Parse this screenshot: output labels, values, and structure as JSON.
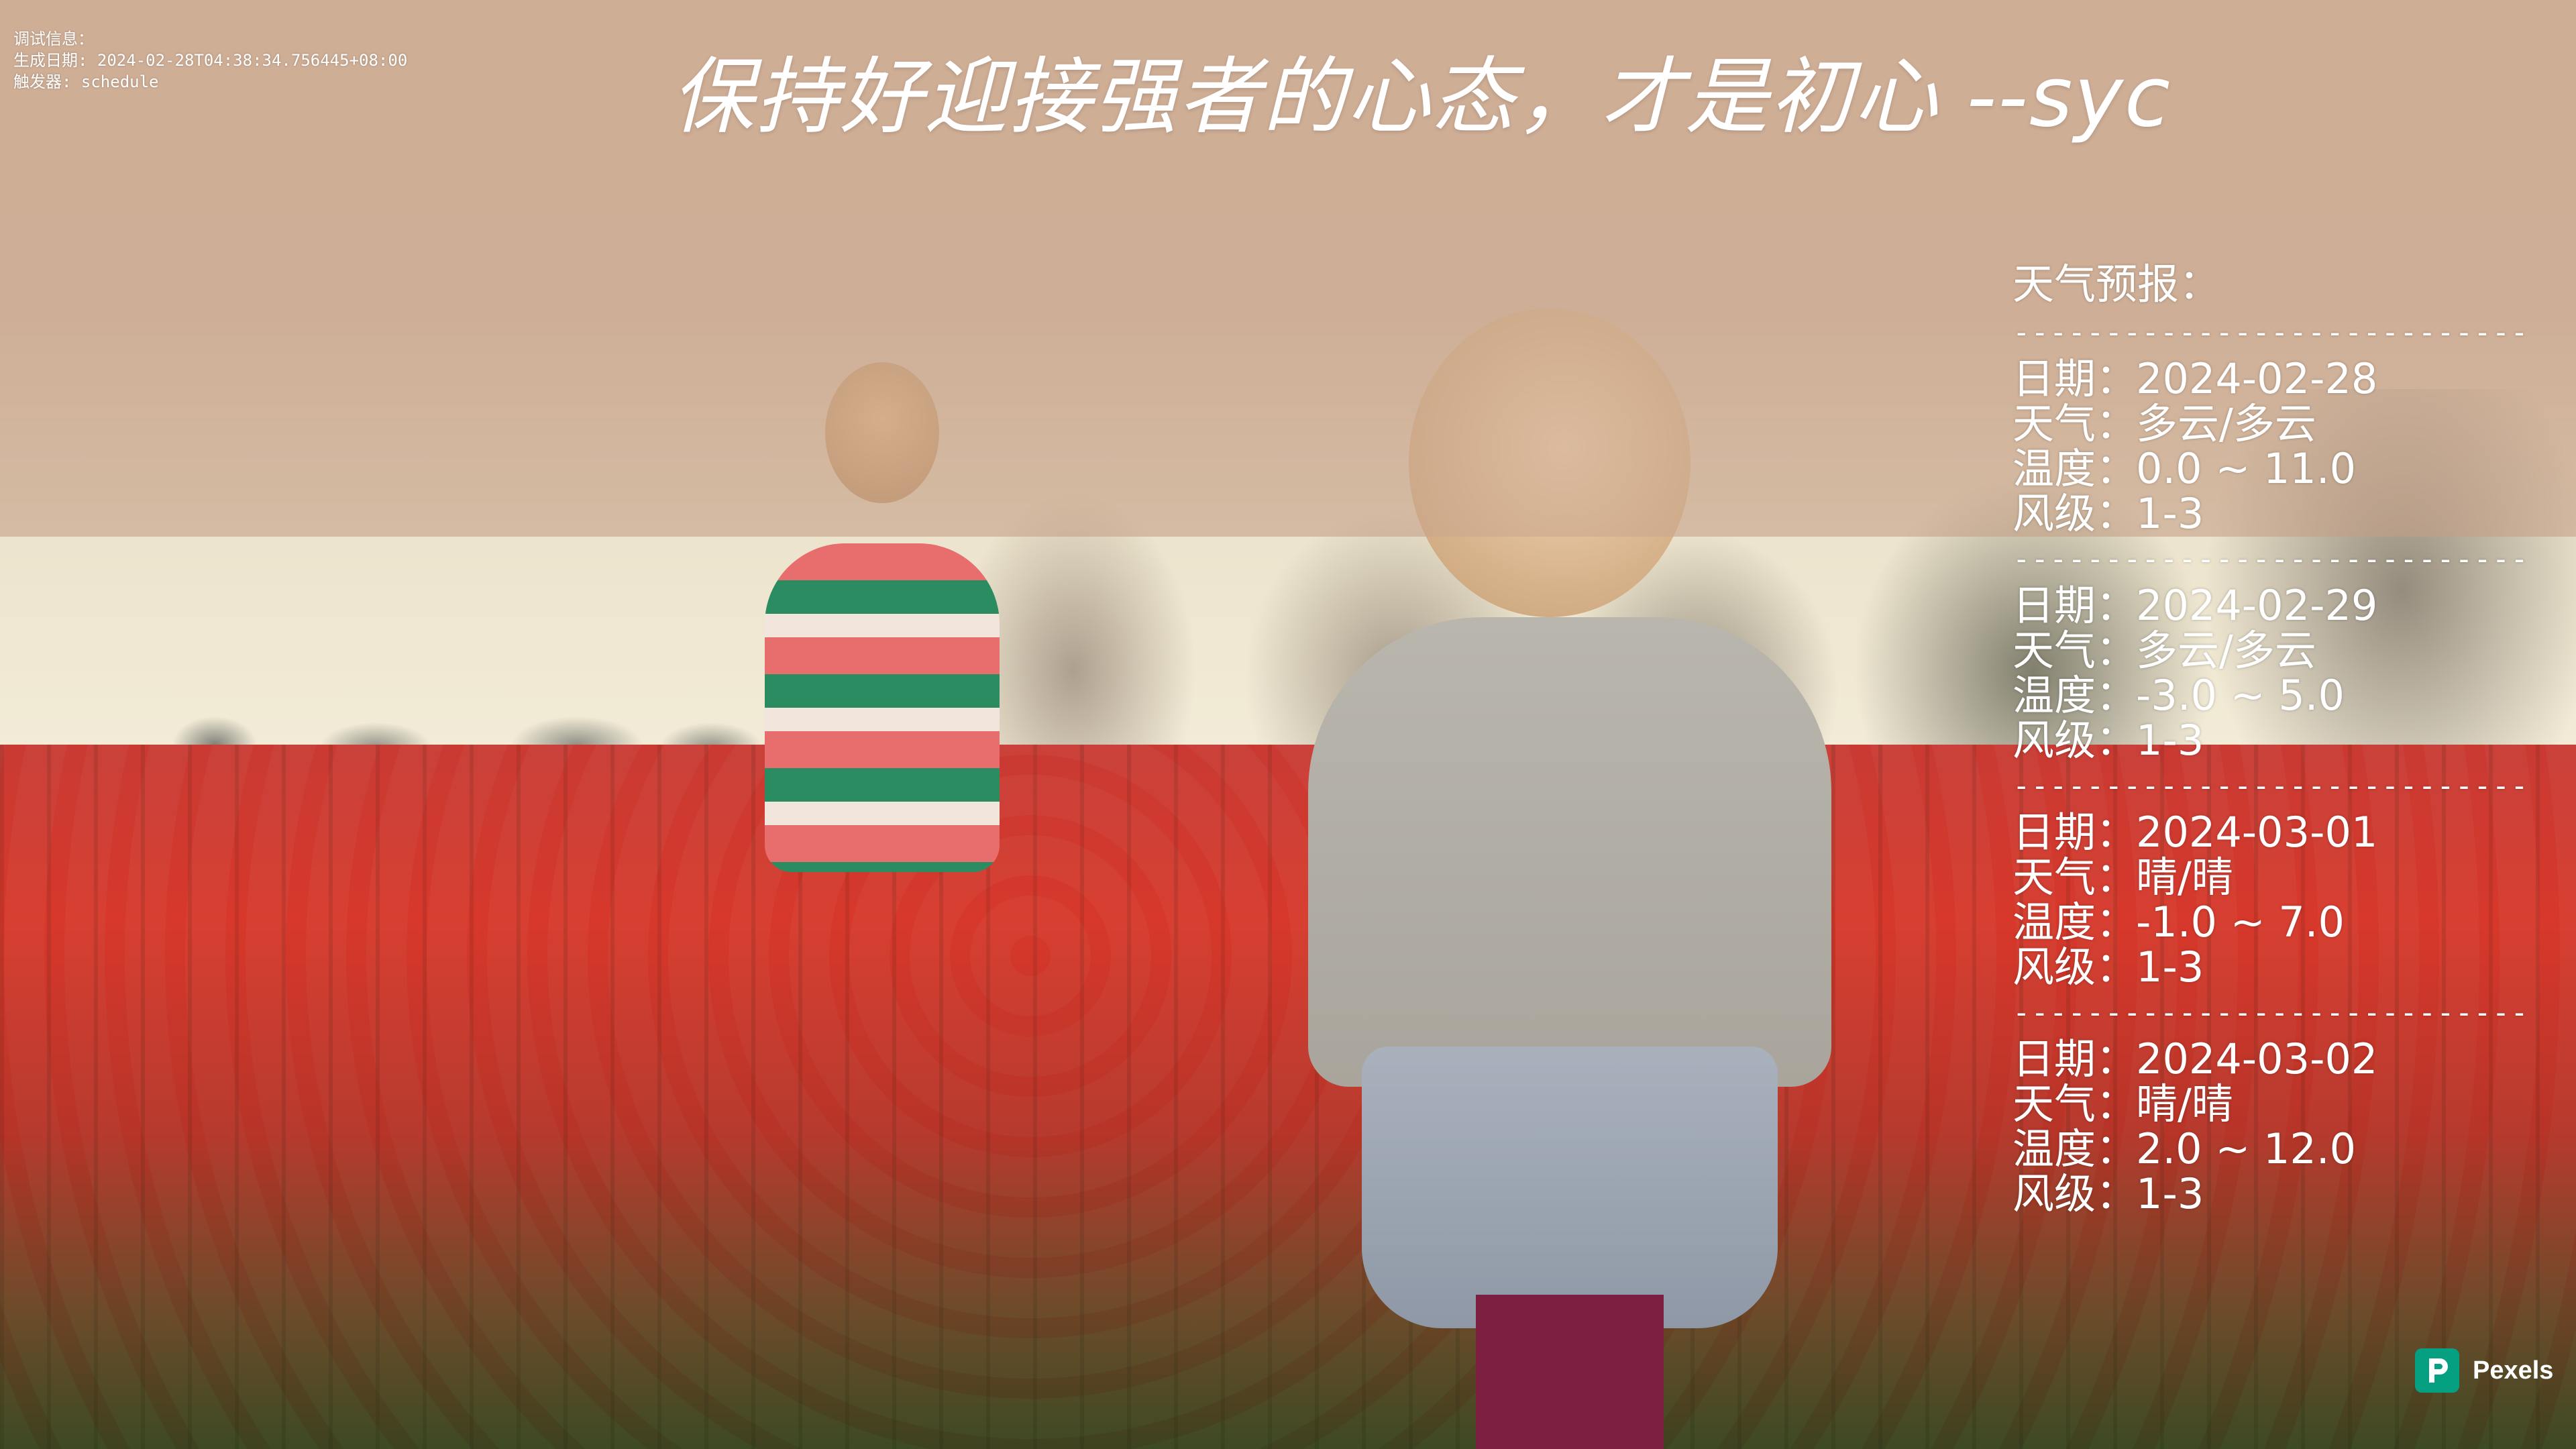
{
  "debug": {
    "lines": [
      "调试信息：",
      "生成日期: 2024-02-28T04:38:34.756445+08:00",
      "触发器: schedule"
    ]
  },
  "quote": {
    "text": "保持好迎接强者的心态，才是初心   --syc"
  },
  "weather": {
    "heading": "天气预报：",
    "separator": "----------------------------",
    "labels": {
      "date": "日期",
      "weather": "天气",
      "temp": "温度",
      "wind": "风级"
    },
    "colon": "：",
    "days": [
      {
        "date": "2024-02-28",
        "weather": "多云/多云",
        "temp": "0.0 ~ 11.0",
        "wind": "1-3"
      },
      {
        "date": "2024-02-29",
        "weather": "多云/多云",
        "temp": "-3.0 ~ 5.0",
        "wind": "1-3"
      },
      {
        "date": "2024-03-01",
        "weather": "晴/晴",
        "temp": "-1.0 ~ 7.0",
        "wind": "1-3"
      },
      {
        "date": "2024-03-02",
        "weather": "晴/晴",
        "temp": "2.0 ~ 12.0",
        "wind": "1-3"
      }
    ]
  },
  "watermark": {
    "label": "Pexels",
    "color": "#05a081",
    "icon": "pexels-logo-icon"
  },
  "background": {
    "description_icon": "photo-background"
  }
}
